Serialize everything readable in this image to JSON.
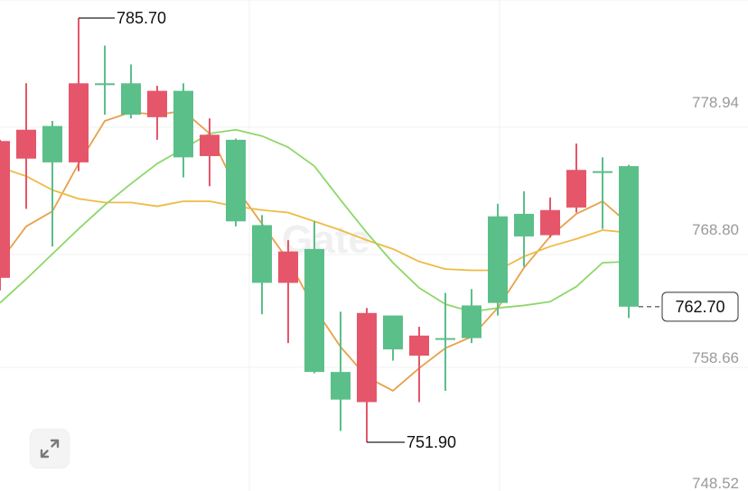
{
  "watermark": "Gate",
  "colors": {
    "up": "#5bbf8a",
    "down": "#e5566a",
    "ma_orange": "#e8a04a",
    "ma_yellow": "#eebb45",
    "ma_green": "#8fd76a",
    "grid": "#f0f0f0"
  },
  "chart_data": {
    "type": "candlestick",
    "y_axis": {
      "range": [
        748.52,
        788.0
      ],
      "ticks": [
        "778.94",
        "768.80",
        "758.66",
        "748.52"
      ]
    },
    "candles": [
      {
        "open": 775.9,
        "close": 765.0,
        "high": 776.0,
        "low": 764.0
      },
      {
        "open": 776.8,
        "close": 774.5,
        "high": 780.5,
        "low": 770.5
      },
      {
        "open": 774.2,
        "close": 777.1,
        "high": 777.5,
        "low": 767.5
      },
      {
        "open": 780.5,
        "close": 774.2,
        "high": 785.7,
        "low": 773.5
      },
      {
        "open": 780.5,
        "close": 780.5,
        "high": 783.5,
        "low": 778.0
      },
      {
        "open": 778.0,
        "close": 780.5,
        "high": 782.0,
        "low": 777.7
      },
      {
        "open": 779.9,
        "close": 777.8,
        "high": 780.3,
        "low": 776.0
      },
      {
        "open": 774.6,
        "close": 779.9,
        "high": 780.5,
        "low": 773.0
      },
      {
        "open": 776.4,
        "close": 774.7,
        "high": 777.7,
        "low": 772.3
      },
      {
        "open": 769.5,
        "close": 776.0,
        "high": 776.1,
        "low": 769.1
      },
      {
        "open": 764.6,
        "close": 769.2,
        "high": 770.0,
        "low": 762.1
      },
      {
        "open": 767.1,
        "close": 764.6,
        "high": 768.0,
        "low": 759.8
      },
      {
        "open": 757.5,
        "close": 767.3,
        "high": 769.5,
        "low": 757.4
      },
      {
        "open": 755.3,
        "close": 757.5,
        "high": 762.3,
        "low": 752.8
      },
      {
        "open": 762.2,
        "close": 755.1,
        "high": 762.6,
        "low": 751.9
      },
      {
        "open": 759.3,
        "close": 762.0,
        "high": 762.0,
        "low": 758.4
      },
      {
        "open": 760.4,
        "close": 758.8,
        "high": 761.1,
        "low": 755.1
      },
      {
        "open": 760.2,
        "close": 760.2,
        "high": 763.8,
        "low": 756.0
      },
      {
        "open": 760.2,
        "close": 762.8,
        "high": 764.1,
        "low": 759.8
      },
      {
        "open": 763.0,
        "close": 769.9,
        "high": 770.9,
        "low": 762.0
      },
      {
        "open": 768.3,
        "close": 770.1,
        "high": 771.9,
        "low": 765.9
      },
      {
        "open": 770.4,
        "close": 768.4,
        "high": 771.4,
        "low": 768.2
      },
      {
        "open": 773.6,
        "close": 770.6,
        "high": 775.7,
        "low": 770.2
      },
      {
        "open": 773.5,
        "close": 773.5,
        "high": 774.6,
        "low": 768.9
      },
      {
        "open": 762.7,
        "close": 773.9,
        "high": 774.0,
        "low": 761.8
      }
    ],
    "ma_lines": [
      {
        "color_key": "ma_orange",
        "values": [
          766.3,
          769.1,
          770.3,
          774.1,
          777.5,
          778.2,
          778.0,
          778.3,
          776.5,
          772.2,
          769.3,
          766.4,
          762.6,
          759.5,
          757.1,
          756.0,
          757.8,
          759.4,
          760.3,
          762.6,
          765.8,
          768.3,
          770.1,
          771.1,
          769.3
        ]
      },
      {
        "color_key": "ma_yellow",
        "values": [
          773.8,
          773.1,
          772.0,
          771.3,
          771.0,
          771.0,
          770.7,
          771.1,
          771.1,
          770.7,
          770.4,
          770.2,
          769.5,
          768.8,
          768.0,
          767.3,
          766.3,
          765.7,
          765.6,
          765.6,
          766.7,
          767.5,
          768.1,
          768.8,
          768.6
        ]
      },
      {
        "color_key": "ma_green",
        "values": [
          763.0,
          764.9,
          766.9,
          768.9,
          770.8,
          772.5,
          774.1,
          775.3,
          776.5,
          776.8,
          776.3,
          775.4,
          773.9,
          771.2,
          768.6,
          766.2,
          764.2,
          762.9,
          762.3,
          762.6,
          762.8,
          763.1,
          764.3,
          766.2,
          766.3
        ]
      }
    ],
    "annotations": {
      "high_label": "785.70",
      "low_label": "751.90",
      "current_price": "762.70"
    }
  }
}
